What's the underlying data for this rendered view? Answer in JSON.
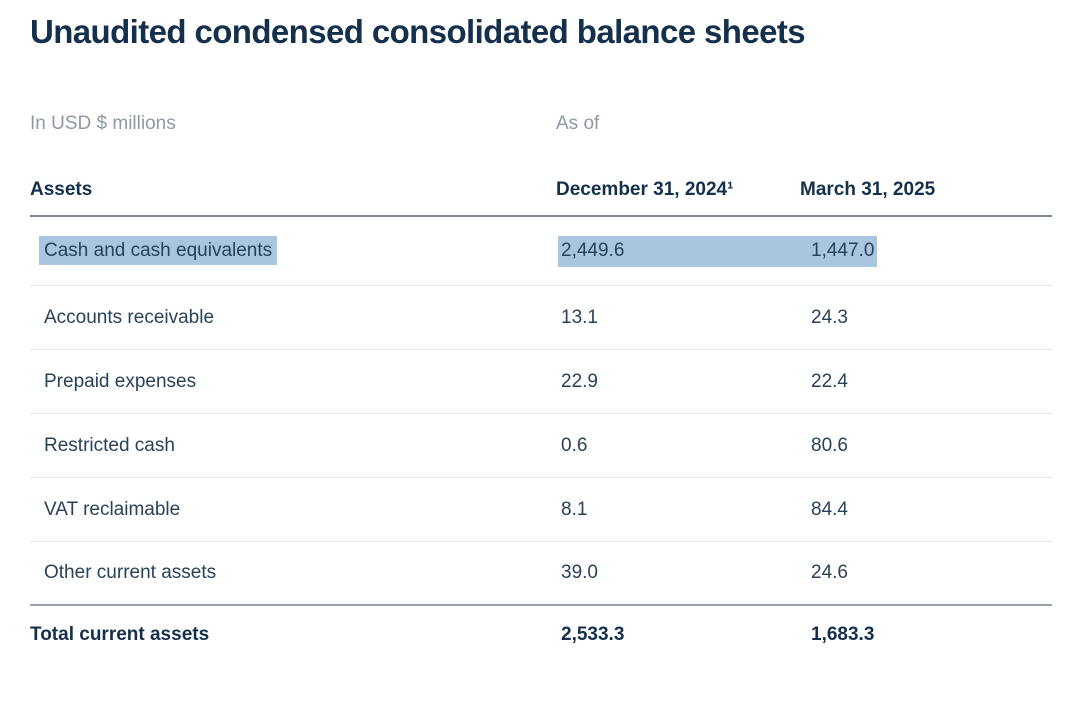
{
  "page": {
    "title": "Unaudited condensed consolidated balance sheets"
  },
  "table": {
    "unit_note": "In USD $ millions",
    "as_of_label": "As of",
    "section_header": "Assets",
    "columns": [
      "December 31, 2024¹",
      "March 31, 2025"
    ],
    "rows": [
      {
        "label": "Cash and cash equivalents",
        "values": [
          "2,449.6",
          "1,447.0"
        ],
        "highlighted": true
      },
      {
        "label": "Accounts receivable",
        "values": [
          "13.1",
          "24.3"
        ],
        "highlighted": false
      },
      {
        "label": "Prepaid expenses",
        "values": [
          "22.9",
          "22.4"
        ],
        "highlighted": false
      },
      {
        "label": "Restricted cash",
        "values": [
          "0.6",
          "80.6"
        ],
        "highlighted": false
      },
      {
        "label": "VAT reclaimable",
        "values": [
          "8.1",
          "84.4"
        ],
        "highlighted": false
      },
      {
        "label": "Other current assets",
        "values": [
          "39.0",
          "24.6"
        ],
        "highlighted": false
      }
    ],
    "total_row": {
      "label": "Total current assets",
      "values": [
        "2,533.3",
        "1,683.3"
      ]
    }
  },
  "colors": {
    "title_text": "#14304d",
    "body_text": "#29425a",
    "muted_text": "#8e99a4",
    "selection_highlight": "#a8c6e0",
    "rule_strong": "#7d8997",
    "rule_total": "#9aa2ab",
    "rule_light": "#e5e7ea"
  }
}
